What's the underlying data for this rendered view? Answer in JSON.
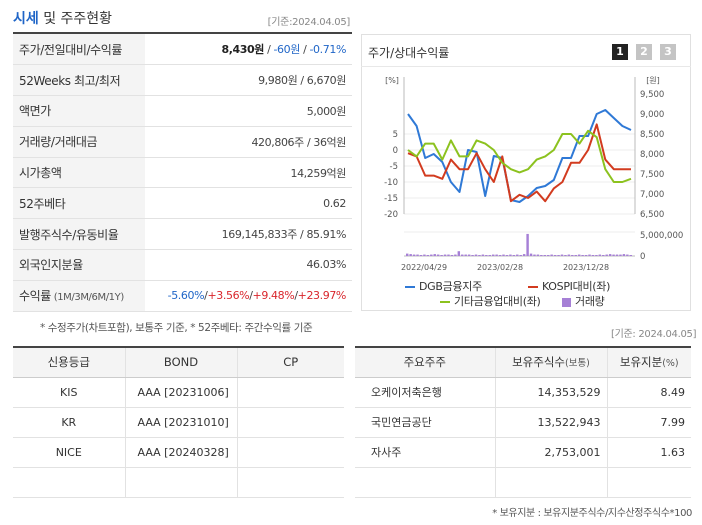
{
  "header": {
    "title_accent": "시세",
    "title_rest": " 및 주주현황",
    "date": "[기준:2024.04.05]"
  },
  "summary": {
    "rows": [
      {
        "label": "주가/전일대비/수익률",
        "parts": [
          {
            "t": "8,430원",
            "c": "b"
          },
          {
            "t": " / ",
            "c": ""
          },
          {
            "t": "-60원",
            "c": "down"
          },
          {
            "t": " / ",
            "c": ""
          },
          {
            "t": "-0.71%",
            "c": "down"
          }
        ]
      },
      {
        "label": "52Weeks 최고/최저",
        "parts": [
          {
            "t": "9,980원 / 6,670원",
            "c": ""
          }
        ]
      },
      {
        "label": "액면가",
        "parts": [
          {
            "t": "5,000원",
            "c": ""
          }
        ]
      },
      {
        "label": "거래량/거래대금",
        "parts": [
          {
            "t": "420,806주 / 36억원",
            "c": ""
          }
        ]
      },
      {
        "label": "시가총액",
        "parts": [
          {
            "t": "14,259억원",
            "c": ""
          }
        ]
      },
      {
        "label": "52주베타",
        "parts": [
          {
            "t": "0.62",
            "c": ""
          }
        ]
      },
      {
        "label": "발행주식수/유동비율",
        "parts": [
          {
            "t": "169,145,833주 / 85.91%",
            "c": ""
          }
        ]
      },
      {
        "label": "외국인지분율",
        "parts": [
          {
            "t": "46.03%",
            "c": ""
          }
        ]
      },
      {
        "label": "수익률",
        "label_small": " (1M/3M/6M/1Y)",
        "parts": [
          {
            "t": "-5.60%",
            "c": "down"
          },
          {
            "t": "/",
            "c": ""
          },
          {
            "t": "+3.56%",
            "c": "up"
          },
          {
            "t": "/",
            "c": ""
          },
          {
            "t": "+9.48%",
            "c": "up"
          },
          {
            "t": "/",
            "c": ""
          },
          {
            "t": "+23.97%",
            "c": "up"
          }
        ]
      }
    ],
    "note": "* 수정주가(차트포함), 보통주 기준, * 52주베타: 주간수익률 기준"
  },
  "chart_panel": {
    "title": "주가/상대수익률",
    "pages": [
      "1",
      "2",
      "3"
    ],
    "right_date": "[기준: 2024.04.05]"
  },
  "chart_data": {
    "type": "line",
    "left_axis": {
      "unit": "[%]",
      "ticks": [
        5,
        0,
        -5,
        -10,
        -15,
        -20
      ],
      "range": [
        -20,
        5
      ]
    },
    "right_axis": {
      "unit": "[원]",
      "ticks": [
        "9,500",
        "9,000",
        "8,500",
        "8,000",
        "7,500",
        "7,000",
        "6,500"
      ],
      "range": [
        6500,
        9500
      ]
    },
    "volume_axis": {
      "ticks": [
        "5,000,000",
        "0"
      ]
    },
    "x_ticks": [
      "2022/04/29",
      "2023/02/28",
      "2023/12/28"
    ],
    "series": [
      {
        "name": "DGB금융지주",
        "color": "#2f79d6",
        "axis": "right",
        "values": [
          9000,
          8700,
          7900,
          8000,
          7800,
          7300,
          7050,
          8100,
          8050,
          6950,
          7950,
          7900,
          6850,
          6800,
          6950,
          7150,
          7200,
          7350,
          7900,
          7900,
          8450,
          8450,
          9000,
          9100,
          8900,
          8700,
          8600
        ]
      },
      {
        "name": "KOSPI대비(좌)",
        "color": "#d23b1f",
        "axis": "left",
        "values": [
          -1,
          -2,
          -8,
          -8,
          -9,
          -3,
          -6,
          -6,
          -1,
          -6,
          -10,
          -2,
          -16,
          -14,
          -15,
          -13,
          -16,
          -12,
          -10,
          -4,
          -4,
          0,
          8,
          -3,
          -6,
          -6,
          -6
        ]
      },
      {
        "name": "기타금융업대비(좌)",
        "color": "#8cc21f",
        "axis": "left",
        "values": [
          0,
          -2,
          2,
          2,
          -3,
          3,
          -2,
          -2,
          3,
          2,
          0,
          -4,
          -6,
          -7,
          -6,
          -3,
          -2,
          0,
          5,
          5,
          2,
          6,
          4,
          -6,
          -10,
          -10,
          -9
        ]
      },
      {
        "name": "거래량",
        "color": "#a680d6",
        "axis": "volume",
        "values": [
          0.5,
          0.4,
          0.3,
          0.3,
          0.2,
          0.3,
          0.2,
          0.3,
          0.4,
          0.3,
          0.2,
          0.3,
          0.3,
          0.2,
          0.3,
          1.0,
          0.3,
          0.3,
          0.3,
          0.2,
          0.3,
          0.2,
          0.3,
          0.2,
          0.2,
          0.3,
          0.3,
          0.2,
          0.3,
          0.2,
          0.3,
          0.2,
          0.3,
          0.2,
          0.4,
          4.6,
          0.5,
          0.3,
          0.3,
          0.2,
          0.2,
          0.2,
          0.3,
          0.2,
          0.2,
          0.3,
          0.2,
          0.3,
          0.2,
          0.2,
          0.3,
          0.2,
          0.2,
          0.3,
          0.2,
          0.2,
          0.3,
          0.2,
          0.3,
          0.4,
          0.3,
          0.3,
          0.3,
          0.4,
          0.3,
          0.2
        ]
      }
    ]
  },
  "credit": {
    "headers": [
      "신용등급",
      "BOND",
      "CP"
    ],
    "rows": [
      {
        "agency": "KIS",
        "bond": "AAA  [20231006]",
        "cp": ""
      },
      {
        "agency": "KR",
        "bond": "AAA  [20231010]",
        "cp": ""
      },
      {
        "agency": "NICE",
        "bond": "AAA  [20240328]",
        "cp": ""
      },
      {
        "agency": "",
        "bond": "",
        "cp": ""
      }
    ]
  },
  "holders": {
    "headers": [
      "주요주주",
      "보유주식수",
      "(보통)",
      "보유지분",
      "(%)"
    ],
    "rows": [
      {
        "name": "오케이저축은행",
        "shares": "14,353,529",
        "pct": "8.49"
      },
      {
        "name": "국민연금공단",
        "shares": "13,522,943",
        "pct": "7.99"
      },
      {
        "name": "자사주",
        "shares": "2,753,001",
        "pct": "1.63"
      },
      {
        "name": "",
        "shares": "",
        "pct": ""
      }
    ],
    "footnote": "* 보유지분 : 보유지분주식수/지수산정주식수*100"
  }
}
